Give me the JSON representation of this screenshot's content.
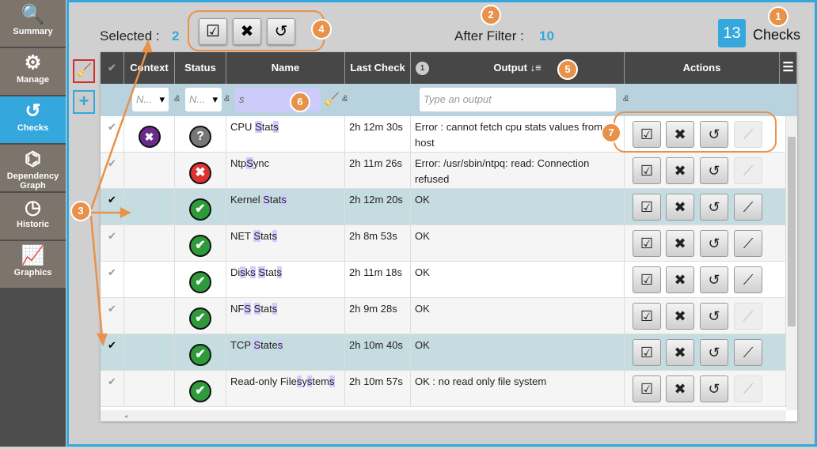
{
  "sidebar": {
    "items": [
      {
        "label": "Summary",
        "icon": "search-icon",
        "glyph": "🔍"
      },
      {
        "label": "Manage",
        "icon": "gears-icon",
        "glyph": "⚙"
      },
      {
        "label": "Checks",
        "icon": "refresh-icon",
        "glyph": "↺",
        "active": true
      },
      {
        "label": "Dependency Graph",
        "icon": "graph-icon",
        "glyph": "⌬"
      },
      {
        "label": "Historic",
        "icon": "clock-icon",
        "glyph": "◷"
      },
      {
        "label": "Graphics",
        "icon": "chart-icon",
        "glyph": "📈"
      }
    ]
  },
  "header": {
    "selected_label": "Selected :",
    "selected_count": "2",
    "after_filter_label": "After Filter :",
    "after_filter_count": "10",
    "total_count": "13",
    "total_label": "Checks"
  },
  "callouts": [
    "1",
    "2",
    "3",
    "4",
    "5",
    "6",
    "7"
  ],
  "table": {
    "columns": [
      "Context",
      "Status",
      "Name",
      "Last Check",
      "Output",
      "Actions"
    ],
    "sort_badge": "1",
    "sort_icon": "sort-desc-icon",
    "filters": {
      "context": "N...",
      "status": "N...",
      "name": "s",
      "output_placeholder": "Type an output",
      "amp": "&"
    },
    "rows": [
      {
        "selected": false,
        "context": "maintenance",
        "status": "unknown",
        "name": "CPU Stats",
        "last": "2h 12m 30s",
        "output": "Error : cannot fetch cpu stats values from host",
        "graph": false
      },
      {
        "selected": false,
        "context": "",
        "status": "critical",
        "name": "NtpSync",
        "last": "2h 11m 26s",
        "output": "Error: /usr/sbin/ntpq: read: Connection refused",
        "graph": false
      },
      {
        "selected": true,
        "context": "",
        "status": "ok",
        "name": "Kernel Stats",
        "last": "2h 12m 20s",
        "output": "OK",
        "graph": true
      },
      {
        "selected": false,
        "context": "",
        "status": "ok",
        "name": "NET Stats",
        "last": "2h 8m 53s",
        "output": "OK",
        "graph": true
      },
      {
        "selected": false,
        "context": "",
        "status": "ok",
        "name": "Disks Stats",
        "last": "2h 11m 18s",
        "output": "OK",
        "graph": true
      },
      {
        "selected": false,
        "context": "",
        "status": "ok",
        "name": "NFS Stats",
        "last": "2h 9m 28s",
        "output": "OK",
        "graph": false
      },
      {
        "selected": true,
        "context": "",
        "status": "ok",
        "name": "TCP States",
        "last": "2h 10m 40s",
        "output": "OK",
        "graph": true
      },
      {
        "selected": false,
        "context": "",
        "status": "ok",
        "name": "Read-only Filesystems",
        "last": "2h 10m 57s",
        "output": "OK : no read only file system",
        "graph": false
      }
    ]
  },
  "colors": {
    "accent": "#34a7dc",
    "callout": "#e8914a",
    "ok": "#2e9a3a",
    "critical": "#e03030",
    "unknown": "#777777",
    "maintenance": "#6a2c8a"
  }
}
